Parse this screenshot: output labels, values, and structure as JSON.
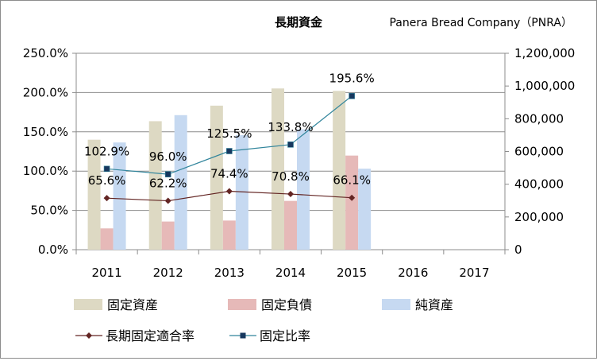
{
  "chart_data": {
    "type": "bar",
    "title": "長期資金",
    "company": "Panera Bread Company（PNRA）",
    "categories": [
      "2011",
      "2012",
      "2013",
      "2014",
      "2015",
      "2016",
      "2017"
    ],
    "y_left": {
      "min": 0,
      "max": 250,
      "step": 50,
      "ticks": [
        "0.0%",
        "50.0%",
        "100.0%",
        "150.0%",
        "200.0%",
        "250.0%"
      ]
    },
    "y_right": {
      "min": 0,
      "max": 1200000,
      "step": 200000,
      "ticks": [
        "0",
        "200,000",
        "400,000",
        "600,000",
        "800,000",
        "1,000,000",
        "1,200,000"
      ]
    },
    "bar_series": [
      {
        "name": "固定資産",
        "color": "#ddd9c3",
        "values": [
          672000,
          785000,
          880000,
          985000,
          970000,
          null,
          null
        ]
      },
      {
        "name": "固定負債",
        "color": "#e6b9b8",
        "values": [
          130000,
          172000,
          178000,
          298000,
          575000,
          null,
          null
        ]
      },
      {
        "name": "純資産",
        "color": "#c6d9f1",
        "values": [
          655000,
          822000,
          700000,
          735000,
          495000,
          null,
          null
        ]
      }
    ],
    "line_series": [
      {
        "name": "長期固定適合率",
        "color": "#632523",
        "marker": "diamond",
        "values": [
          65.6,
          62.2,
          74.4,
          70.8,
          66.1,
          null,
          null
        ],
        "labels": [
          "65.6%",
          "62.2%",
          "74.4%",
          "70.8%",
          "66.1%",
          "",
          ""
        ]
      },
      {
        "name": "固定比率",
        "color": "#31859c",
        "marker_color": "#17375e",
        "marker": "square",
        "values": [
          102.9,
          96.0,
          125.5,
          133.8,
          195.6,
          null,
          null
        ],
        "labels": [
          "102.9%",
          "96.0%",
          "125.5%",
          "133.8%",
          "195.6%",
          "",
          ""
        ]
      }
    ],
    "grid": true,
    "legend_position": "bottom"
  }
}
